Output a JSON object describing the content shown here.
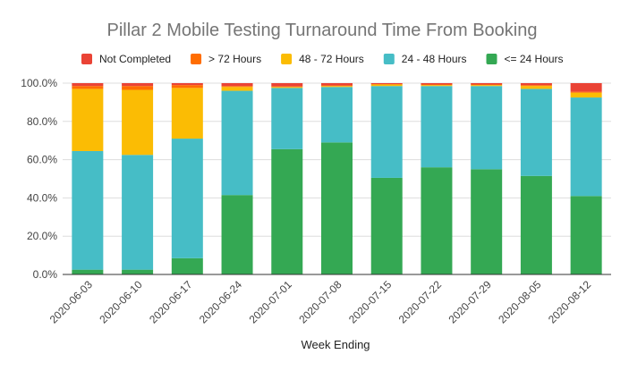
{
  "chart_data": {
    "type": "bar",
    "stacked": true,
    "normalized": true,
    "title": "Pillar 2 Mobile Testing Turnaround Time From Booking",
    "xlabel": "Week Ending",
    "ylabel": "",
    "ylim": [
      0,
      100
    ],
    "yticks": [
      "0.0%",
      "20.0%",
      "40.0%",
      "60.0%",
      "80.0%",
      "100.0%"
    ],
    "grid": true,
    "legend_position": "top",
    "categories": [
      "2020-06-03",
      "2020-06-10",
      "2020-06-17",
      "2020-06-24",
      "2020-07-01",
      "2020-07-08",
      "2020-07-15",
      "2020-07-22",
      "2020-07-29",
      "2020-08-05",
      "2020-08-12"
    ],
    "series": [
      {
        "name": "<= 24 Hours",
        "color": "#34a853",
        "values": [
          2.5,
          2.5,
          8.5,
          41.5,
          65.5,
          69.0,
          50.5,
          56.0,
          55.0,
          51.5,
          41.0
        ]
      },
      {
        "name": "24 - 48 Hours",
        "color": "#46bdc6",
        "values": [
          62.0,
          60.0,
          62.5,
          54.5,
          32.0,
          29.0,
          48.0,
          42.5,
          43.5,
          45.5,
          51.5
        ]
      },
      {
        "name": "48 - 72 Hours",
        "color": "#fbbc04",
        "values": [
          32.5,
          34.0,
          26.5,
          2.0,
          0.5,
          0.5,
          0.8,
          0.5,
          0.5,
          1.5,
          2.5
        ]
      },
      {
        "name": "> 72 Hours",
        "color": "#ff6d01",
        "values": [
          1.5,
          2.0,
          1.5,
          0.5,
          0.3,
          0.3,
          0.2,
          0.3,
          0.3,
          0.5,
          0.5
        ]
      },
      {
        "name": "Not Completed",
        "color": "#ea4335",
        "values": [
          1.5,
          1.5,
          1.0,
          1.5,
          1.7,
          1.2,
          0.5,
          0.7,
          0.7,
          1.0,
          4.5
        ]
      }
    ],
    "legend_order": [
      "Not Completed",
      "> 72 Hours",
      "48 - 72 Hours",
      "24 - 48 Hours",
      "<= 24 Hours"
    ]
  }
}
